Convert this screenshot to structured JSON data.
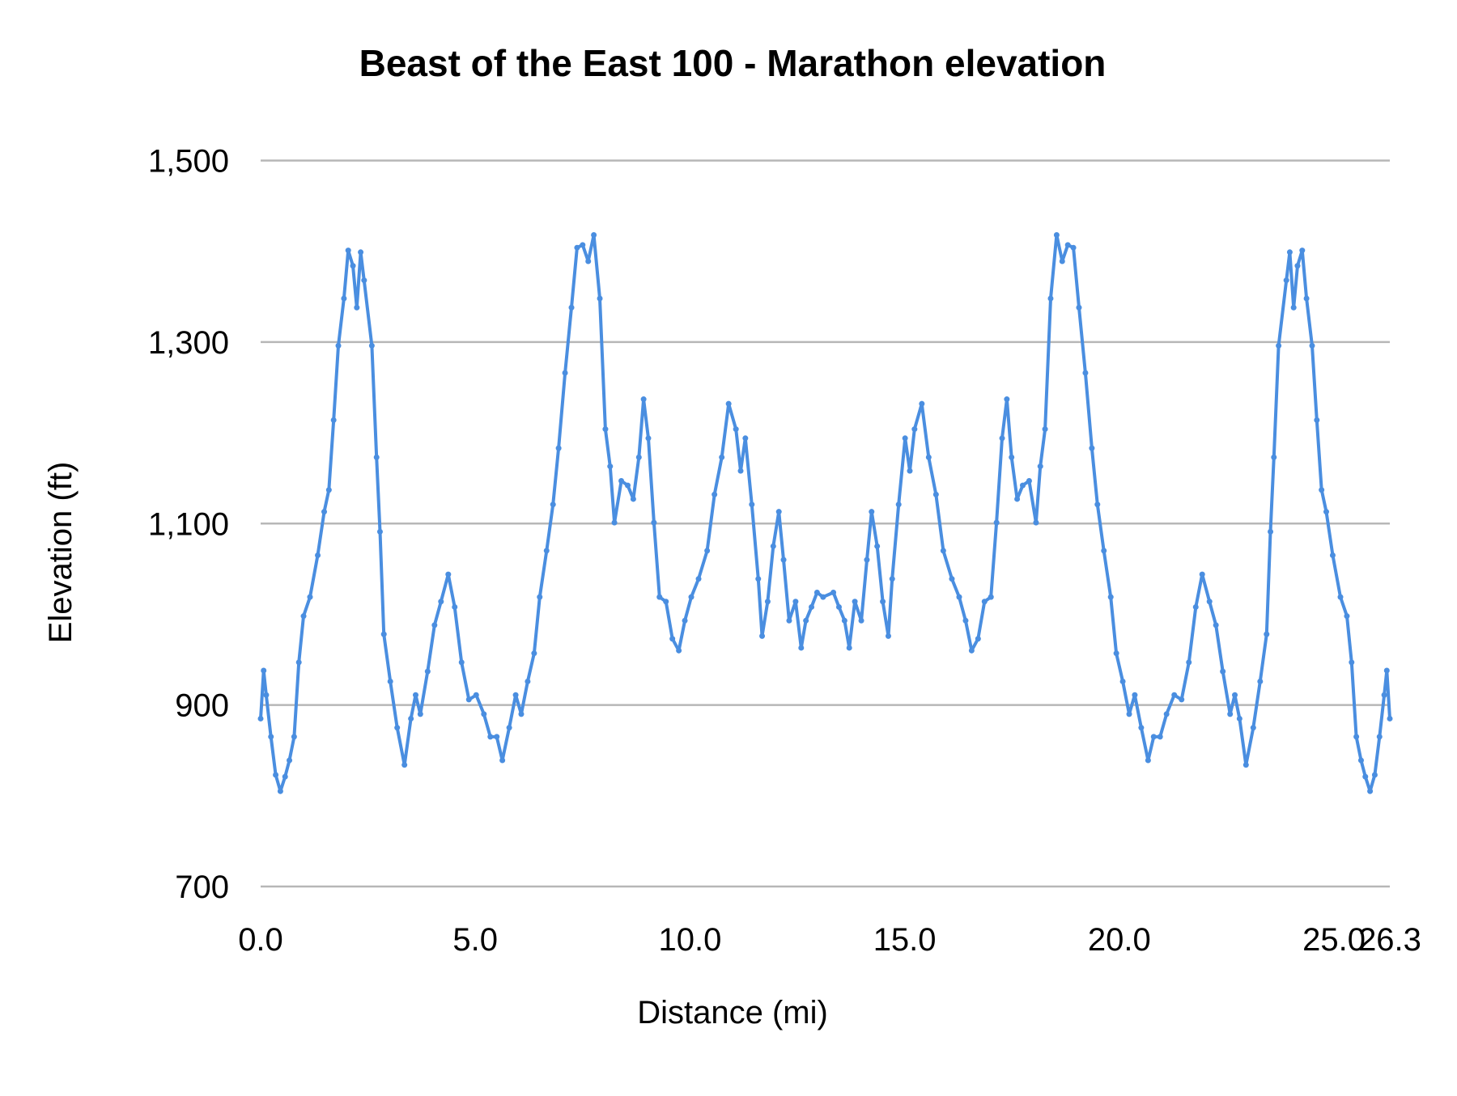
{
  "chart_data": {
    "type": "line",
    "title": "Beast of the East 100 - Marathon elevation",
    "xlabel": "Distance (mi)",
    "ylabel": "Elevation (ft)",
    "xlim": [
      0,
      26.3
    ],
    "ylim": [
      700,
      1500
    ],
    "x_ticks": [
      "0.0",
      "5.0",
      "10.0",
      "15.0",
      "20.0",
      "25.0",
      "26.3"
    ],
    "x_tick_values": [
      0,
      5,
      10,
      15,
      20,
      25,
      26.3
    ],
    "y_ticks": [
      "1,500",
      "1,300",
      "1,100",
      "900",
      "700"
    ],
    "y_tick_values": [
      1500,
      1300,
      1100,
      900,
      700
    ],
    "grid": "horizontal",
    "legend": "none",
    "line_color": "#4a8ee0",
    "markers": true,
    "series": [
      {
        "x": [
          0,
          0.07,
          0.13,
          0.24,
          0.35,
          0.46,
          0.57,
          0.67,
          0.78,
          0.89,
          1.0,
          1.15,
          1.33,
          1.48,
          1.59,
          1.7,
          1.81,
          1.94,
          2.04,
          2.15,
          2.24,
          2.33,
          2.41,
          2.59,
          2.7,
          2.78,
          2.87,
          3.02,
          3.18,
          3.35,
          3.5,
          3.61,
          3.72,
          3.89,
          4.05,
          4.2,
          4.37,
          4.52,
          4.68,
          4.85,
          5.02,
          5.2,
          5.35,
          5.5,
          5.63,
          5.79,
          5.94,
          6.07,
          6.22,
          6.37,
          6.5,
          6.66,
          6.81,
          6.94,
          7.09,
          7.24,
          7.37,
          7.5,
          7.63,
          7.76,
          7.9,
          8.03,
          8.14,
          8.24,
          8.4,
          8.55,
          8.68,
          8.81,
          8.92,
          9.03,
          9.16,
          9.29,
          9.44,
          9.59,
          9.74,
          9.88,
          10.03,
          10.2,
          10.4,
          10.57,
          10.74,
          10.9,
          11.07,
          11.18,
          11.29,
          11.44,
          11.59,
          11.68,
          11.81,
          11.94,
          12.07,
          12.18,
          12.31,
          12.46,
          12.59,
          12.7,
          12.83,
          12.96,
          13.1,
          13.34,
          13.47,
          13.6,
          13.71,
          13.84,
          13.99,
          14.12,
          14.23,
          14.36,
          14.49,
          14.62,
          14.71,
          14.86,
          15.01,
          15.12,
          15.23,
          15.4,
          15.56,
          15.73,
          15.9,
          16.1,
          16.27,
          16.42,
          16.56,
          16.71,
          16.86,
          17.01,
          17.14,
          17.27,
          17.38,
          17.49,
          17.62,
          17.75,
          17.9,
          18.06,
          18.16,
          18.27,
          18.4,
          18.54,
          18.67,
          18.8,
          18.93,
          19.06,
          19.21,
          19.36,
          19.49,
          19.64,
          19.8,
          19.93,
          20.08,
          20.23,
          20.36,
          20.51,
          20.67,
          20.8,
          20.95,
          21.1,
          21.28,
          21.45,
          21.62,
          21.78,
          21.93,
          22.1,
          22.25,
          22.41,
          22.58,
          22.69,
          22.8,
          22.95,
          23.12,
          23.28,
          23.43,
          23.52,
          23.6,
          23.71,
          23.89,
          23.97,
          24.06,
          24.15,
          24.26,
          24.36,
          24.49,
          24.6,
          24.71,
          24.82,
          24.97,
          25.15,
          25.3,
          25.41,
          25.52,
          25.63,
          25.73,
          25.84,
          25.95,
          26.06,
          26.17,
          26.23,
          26.3
        ],
        "y": [
          885,
          938,
          911,
          865,
          823,
          805,
          821,
          839,
          865,
          947,
          998,
          1019,
          1065,
          1113,
          1137,
          1214,
          1296,
          1348,
          1401,
          1384,
          1338,
          1399,
          1368,
          1296,
          1173,
          1091,
          978,
          926,
          875,
          834,
          885,
          911,
          890,
          937,
          988,
          1014,
          1044,
          1008,
          947,
          906,
          911,
          890,
          865,
          865,
          839,
          875,
          911,
          890,
          926,
          957,
          1019,
          1070,
          1121,
          1183,
          1266,
          1338,
          1404,
          1407,
          1389,
          1418,
          1348,
          1204,
          1163,
          1101,
          1147,
          1142,
          1127,
          1173,
          1237,
          1194,
          1101,
          1019,
          1014,
          973,
          960,
          993,
          1019,
          1039,
          1070,
          1132,
          1173,
          1232,
          1204,
          1158,
          1194,
          1121,
          1039,
          976,
          1014,
          1075,
          1113,
          1060,
          993,
          1014,
          963,
          993,
          1008,
          1024,
          1019,
          1024,
          1008,
          993,
          963,
          1014,
          993,
          1060,
          1113,
          1075,
          1014,
          976,
          1039,
          1121,
          1194,
          1158,
          1204,
          1232,
          1173,
          1132,
          1070,
          1039,
          1019,
          993,
          960,
          973,
          1014,
          1019,
          1101,
          1194,
          1237,
          1173,
          1127,
          1142,
          1147,
          1101,
          1163,
          1204,
          1348,
          1418,
          1389,
          1407,
          1404,
          1338,
          1266,
          1183,
          1121,
          1070,
          1019,
          957,
          926,
          890,
          911,
          875,
          839,
          865,
          865,
          890,
          911,
          906,
          947,
          1008,
          1044,
          1014,
          988,
          937,
          890,
          911,
          885,
          834,
          875,
          926,
          978,
          1091,
          1173,
          1296,
          1368,
          1399,
          1338,
          1384,
          1401,
          1348,
          1296,
          1214,
          1137,
          1113,
          1065,
          1019,
          998,
          947,
          865,
          839,
          821,
          805,
          823,
          865,
          911,
          938,
          885
        ]
      }
    ]
  }
}
